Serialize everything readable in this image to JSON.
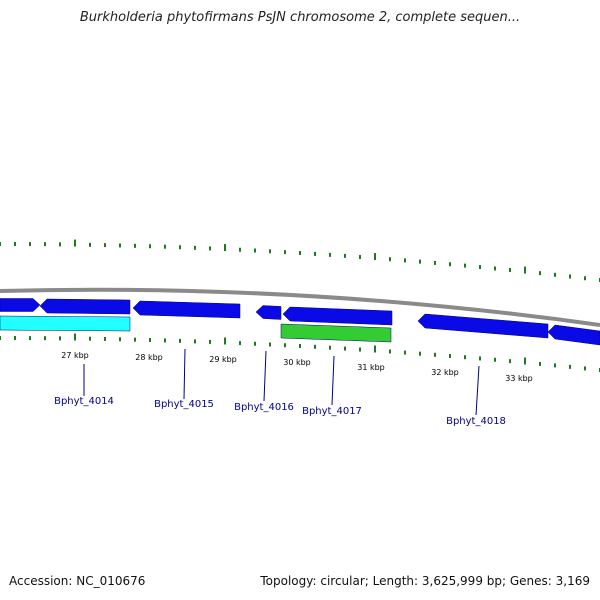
{
  "title": "Burkholderia phytofirmans PsJN chromosome 2, complete sequen...",
  "footer": {
    "accession": "Accession: NC_010676",
    "summary": "Topology: circular; Length: 3,625,999 bp; Genes: 3,169"
  },
  "colors": {
    "backbone": "#8a8a8a",
    "tick": "#1f7a1f",
    "gene_forward": "#0a0ae6",
    "gene_cyan": "#22ffff",
    "gene_green": "#33cc33",
    "label": "#00008b"
  },
  "scale": {
    "kbp_labels": [
      "27 kbp",
      "28 kbp",
      "29 kbp",
      "30 kbp",
      "31 kbp",
      "32 kbp",
      "33 kbp"
    ]
  },
  "gene_labels": [
    "Bphyt_4014",
    "Bphyt_4015",
    "Bphyt_4016",
    "Bphyt_4017",
    "Bphyt_4018"
  ]
}
